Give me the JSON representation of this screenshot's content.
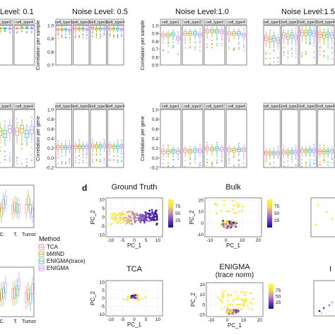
{
  "colors": {
    "TCA": "#f08080",
    "bMIND": "#a3a500",
    "ENIGMA(trace)": "#2bb5b8",
    "ENIGMA": "#c77cff"
  },
  "noise_titles": [
    "Level: 0.1",
    "Noise Level: 0.5",
    "Noise Level:1.0",
    "Noise Level:1.5"
  ],
  "cell_types": [
    "cell_type1",
    "cell_type2",
    "cell_type3",
    "cell_type4"
  ],
  "ylabel_sample": "Correlation per sample",
  "ylabel_gene": "Correlation per gene",
  "legend": {
    "title": "Method",
    "items": [
      "TCA",
      "bMIND",
      "ENIGMA(trace)",
      "ENIGMA"
    ]
  },
  "panel_d_label": "d",
  "chart_data": [
    {
      "type": "box",
      "metric": "Correlation per sample",
      "noise_level": 0.5,
      "ylim": [
        0.7,
        1.0
      ],
      "yticks": [
        0.7,
        0.8,
        0.9,
        1.0
      ],
      "medians": [
        [
          0.97,
          0.975,
          0.98,
          0.975
        ],
        [
          0.97,
          0.975,
          0.975,
          0.975
        ],
        [
          0.97,
          0.975,
          0.975,
          0.975
        ],
        [
          0.965,
          0.97,
          0.975,
          0.97
        ]
      ]
    },
    {
      "type": "box",
      "metric": "Correlation per sample",
      "noise_level": 1.0,
      "ylim": [
        0.5,
        1.0
      ],
      "yticks": [
        0.5,
        0.6,
        0.7,
        0.8,
        0.9,
        1.0
      ],
      "medians": [
        [
          0.88,
          0.9,
          0.93,
          0.9
        ],
        [
          0.88,
          0.9,
          0.93,
          0.9
        ],
        [
          0.89,
          0.9,
          0.93,
          0.9
        ],
        [
          0.84,
          0.88,
          0.92,
          0.88
        ]
      ]
    },
    {
      "type": "box",
      "metric": "Correlation per sample",
      "noise_level": 1.5,
      "ylim": [
        0.2,
        1.0
      ],
      "medians": [
        [
          0.75,
          0.8,
          0.85,
          0.82
        ],
        [
          0.72,
          0.78,
          0.85,
          0.8
        ],
        [
          0.74,
          0.8,
          0.86,
          0.82
        ],
        [
          0.7,
          0.76,
          0.84,
          0.8
        ]
      ]
    },
    {
      "type": "box",
      "metric": "Correlation per gene",
      "noise_level": 0.5,
      "ylim": [
        -0.2,
        1.0
      ],
      "yticks": [
        -0.2,
        0.0,
        0.2,
        0.4,
        0.6,
        0.8,
        1.0
      ],
      "medians": [
        [
          0.22,
          0.23,
          0.25,
          0.24
        ],
        [
          0.22,
          0.23,
          0.24,
          0.23
        ],
        [
          0.22,
          0.23,
          0.24,
          0.23
        ],
        [
          0.22,
          0.23,
          0.25,
          0.24
        ]
      ]
    },
    {
      "type": "box",
      "metric": "Correlation per gene",
      "noise_level": 1.0,
      "ylim": [
        -0.2,
        1.0
      ],
      "yticks": [
        -0.2,
        0.0,
        0.2,
        0.4,
        0.6,
        0.8,
        1.0
      ],
      "medians": [
        [
          0.13,
          0.15,
          0.19,
          0.17
        ],
        [
          0.13,
          0.14,
          0.18,
          0.16
        ],
        [
          0.14,
          0.15,
          0.19,
          0.17
        ],
        [
          0.13,
          0.15,
          0.18,
          0.17
        ]
      ]
    },
    {
      "type": "box",
      "metric": "Correlation per gene",
      "noise_level": 1.5,
      "ylim": [
        -0.2,
        1.0
      ],
      "medians": [
        [
          0.1,
          0.12,
          0.15,
          0.13
        ],
        [
          0.1,
          0.11,
          0.14,
          0.13
        ],
        [
          0.1,
          0.12,
          0.15,
          0.13
        ],
        [
          0.1,
          0.12,
          0.15,
          0.14
        ]
      ]
    },
    {
      "type": "box",
      "metric": "Correlation per gene",
      "noise_level": 0.1,
      "ylim": [
        -0.2,
        1.0
      ],
      "medians": [
        [
          0.6,
          0.58
        ],
        [
          0.45,
          0.5
        ]
      ]
    },
    {
      "type": "box",
      "panel": "c",
      "categories": [
        "C.",
        "T.",
        "Tumor"
      ],
      "medians": [
        [
          0.55,
          0.6,
          0.65,
          0.6
        ],
        [
          0.55,
          0.62,
          0.66,
          0.6
        ]
      ]
    },
    {
      "type": "scatter",
      "title": "Ground Truth",
      "xlabel": "PC_1",
      "ylabel": "PC_2",
      "xticks": [
        -10,
        -5,
        0,
        5,
        10
      ],
      "yticks": [
        -10,
        -5,
        0,
        5,
        10
      ],
      "colorbar": {
        "ticks": [
          25,
          50,
          75
        ],
        "range": [
          0,
          100
        ]
      },
      "n_points": 190,
      "description": "points colored by value, gradient left(high) to right(low)"
    },
    {
      "type": "scatter",
      "title": "Bulk",
      "xlabel": "PC_1",
      "ylabel": "PC_2",
      "xticks": [
        -10,
        0,
        10,
        20
      ],
      "yticks": [
        -10,
        0,
        10,
        20
      ],
      "colorbar": {
        "ticks": [
          25,
          50,
          75
        ],
        "range": [
          0,
          100
        ]
      },
      "n_points": 200
    },
    {
      "type": "scatter",
      "title": "TCA",
      "xlabel": "PC_1",
      "ylabel": "PC_2",
      "xticks": [
        -10,
        -5,
        0,
        5,
        10
      ],
      "yticks": [
        -10,
        -5,
        0,
        5,
        10
      ],
      "n_points": 80
    },
    {
      "type": "scatter",
      "title": "ENIGMA\n(trace norm)",
      "xlabel": "PC_1",
      "ylabel": "PC_2",
      "xticks": [
        -10,
        0,
        10,
        20
      ],
      "yticks": [
        -10,
        0,
        10,
        20
      ],
      "colorbar": {
        "ticks": [
          25,
          50,
          75
        ],
        "range": [
          0,
          100
        ]
      },
      "n_points": 180
    }
  ],
  "visible_ticks": {
    "sample_05": [
      "0.7",
      "0.8",
      "0.9",
      "1.0"
    ],
    "sample_10": [
      "0.5",
      "0.6",
      "0.7",
      "0.8",
      "0.9",
      "1.0"
    ],
    "gene": [
      "-0.2",
      "0.0",
      "0.2",
      "0.4",
      "0.6",
      "0.8",
      "1.0"
    ],
    "scatter_sym": [
      "-10",
      "-5",
      "0",
      "5",
      "10"
    ],
    "scatter_wide": [
      "-10",
      "0",
      "10",
      "20"
    ],
    "colorbar": [
      "25",
      "50",
      "75"
    ],
    "c_x": [
      "C.",
      "T.",
      "Tumor"
    ]
  },
  "scatter_titles": {
    "gt": "Ground Truth",
    "bulk": "Bulk",
    "tca": "TCA",
    "enigma1": "ENIGMA",
    "enigma2": "(trace norm)"
  },
  "scatter_axis": {
    "x": "PC_1",
    "y": "PC_2"
  },
  "partial_right_letter": "I"
}
